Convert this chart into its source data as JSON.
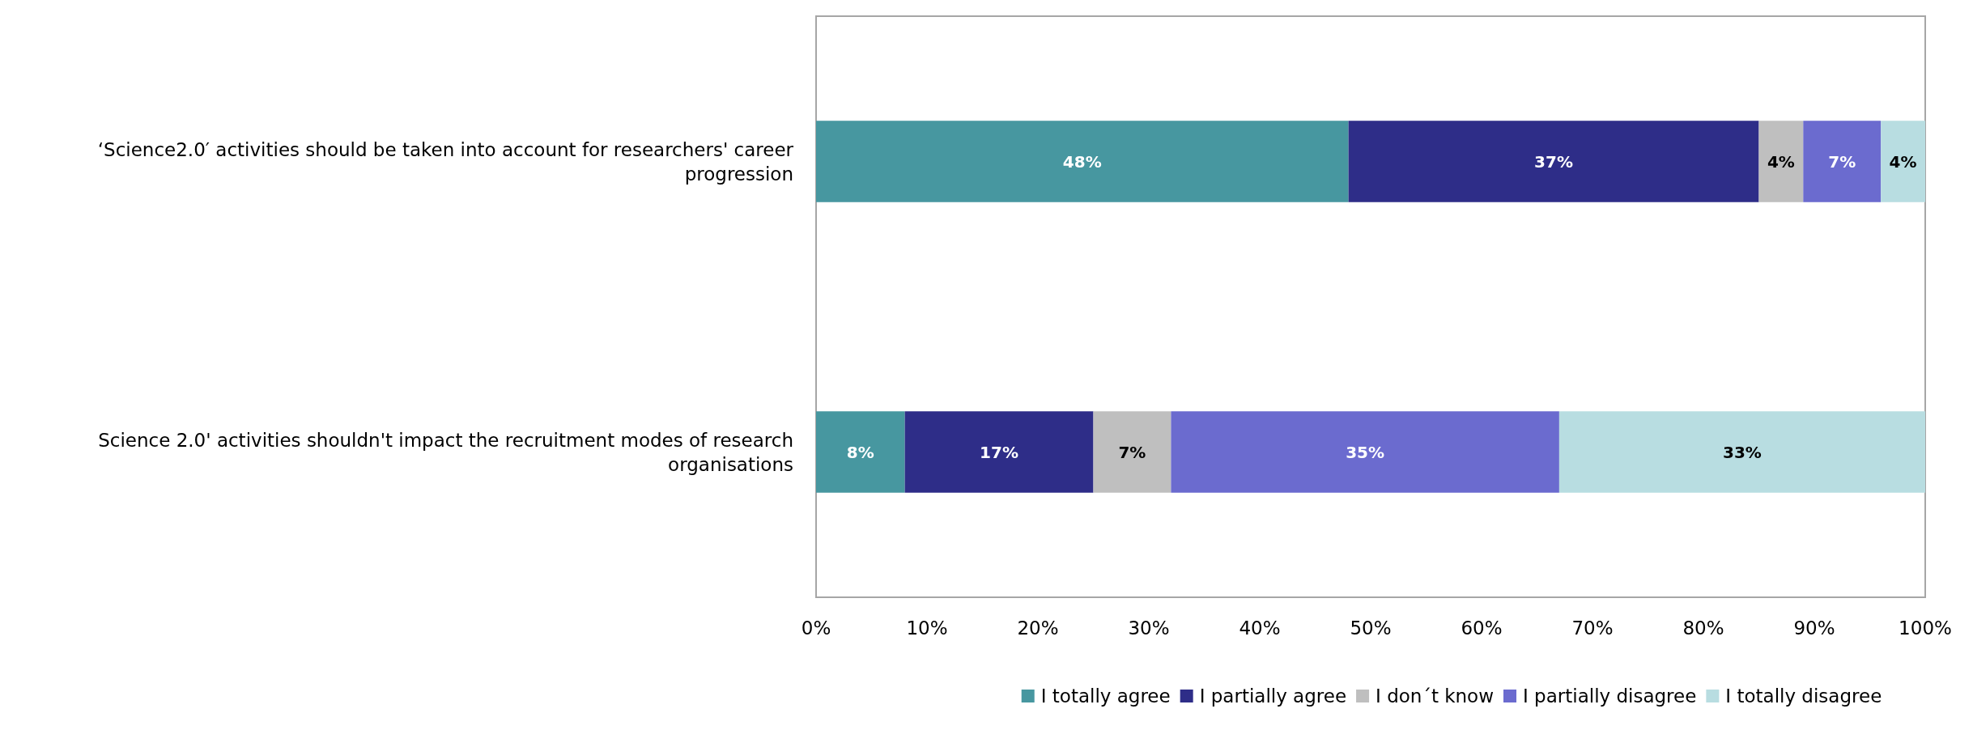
{
  "chart_data": {
    "type": "bar",
    "orientation": "horizontal",
    "stacked": true,
    "categories": [
      "‘Science2.0′ activities should be taken into account for researchers' career progression",
      "Science 2.0' activities shouldn't impact the recruitment modes of research organisations"
    ],
    "series": [
      {
        "name": "I totally agree",
        "color": "#4797a0",
        "values": [
          48,
          8
        ],
        "value_labels": [
          "48%",
          "8%"
        ]
      },
      {
        "name": "I partially agree",
        "color": "#2e2d88",
        "values": [
          37,
          17
        ],
        "value_labels": [
          "37%",
          "17%"
        ]
      },
      {
        "name": "I don´t know",
        "color": "#bfbfbf",
        "values": [
          4,
          7
        ],
        "value_labels": [
          "4%",
          "7%"
        ]
      },
      {
        "name": "I partially disagree",
        "color": "#6b6bcf",
        "values": [
          7,
          35
        ],
        "value_labels": [
          "7%",
          "35%"
        ]
      },
      {
        "name": "I totally disagree",
        "color": "#b8dde1",
        "values": [
          4,
          33
        ],
        "value_labels": [
          "4%",
          "33%"
        ]
      }
    ],
    "xlim": [
      0,
      100
    ],
    "xticks": [
      {
        "value": 0,
        "label": "0%"
      },
      {
        "value": 10,
        "label": "10%"
      },
      {
        "value": 20,
        "label": "20%"
      },
      {
        "value": 30,
        "label": "30%"
      },
      {
        "value": 40,
        "label": "40%"
      },
      {
        "value": 50,
        "label": "50%"
      },
      {
        "value": 60,
        "label": "60%"
      },
      {
        "value": 70,
        "label": "70%"
      },
      {
        "value": 80,
        "label": "80%"
      },
      {
        "value": 90,
        "label": "90%"
      },
      {
        "value": 100,
        "label": "100%"
      }
    ],
    "legend": "bottom"
  }
}
